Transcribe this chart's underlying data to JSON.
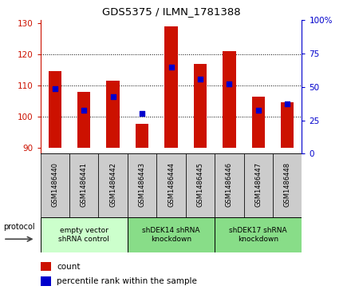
{
  "title": "GDS5375 / ILMN_1781388",
  "samples": [
    "GSM1486440",
    "GSM1486441",
    "GSM1486442",
    "GSM1486443",
    "GSM1486444",
    "GSM1486445",
    "GSM1486446",
    "GSM1486447",
    "GSM1486448"
  ],
  "counts": [
    114.5,
    108.0,
    111.5,
    97.5,
    129.0,
    117.0,
    121.0,
    106.5,
    104.5
  ],
  "percentile_values": [
    109.0,
    102.0,
    106.5,
    101.0,
    116.0,
    112.0,
    110.5,
    102.0,
    104.0
  ],
  "bar_bottom": 90,
  "ylim_left": [
    88,
    131
  ],
  "ylim_right": [
    0,
    100
  ],
  "yticks_left": [
    90,
    100,
    110,
    120,
    130
  ],
  "yticks_right": [
    0,
    25,
    50,
    75,
    100
  ],
  "ytick_labels_right": [
    "0",
    "25",
    "50",
    "75",
    "100%"
  ],
  "bar_color": "#cc1100",
  "percentile_color": "#0000cc",
  "groups": [
    {
      "label": "empty vector\nshRNA control",
      "start": 0,
      "end": 3
    },
    {
      "label": "shDEK14 shRNA\nknockdown",
      "start": 3,
      "end": 6
    },
    {
      "label": "shDEK17 shRNA\nknockdown",
      "start": 6,
      "end": 9
    }
  ],
  "group_colors": [
    "#ccffcc",
    "#88dd88",
    "#88dd88"
  ],
  "protocol_label": "protocol",
  "legend_count_label": "count",
  "legend_percentile_label": "percentile rank within the sample",
  "bg_color": "#ffffff",
  "tick_area_color": "#cccccc"
}
